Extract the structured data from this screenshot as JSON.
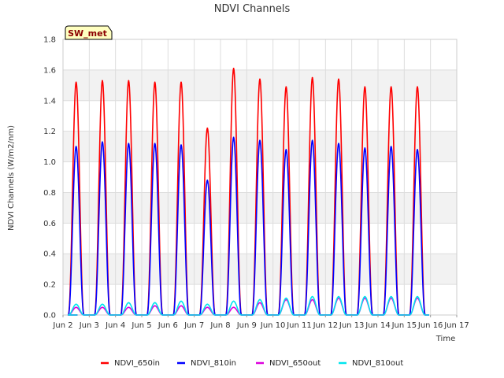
{
  "chart_data": {
    "type": "line",
    "title": "NDVI Channels",
    "xlabel": "Time",
    "ylabel": "NDVI Channels (W/m2/nm)",
    "badge": "SW_met",
    "xlim": [
      2,
      17
    ],
    "ylim": [
      0,
      1.8
    ],
    "y_ticks": [
      0.0,
      0.2,
      0.4,
      0.6,
      0.8,
      1.0,
      1.2,
      1.4,
      1.6,
      1.8
    ],
    "y_tick_labels": [
      "0.0",
      "0.2",
      "0.4",
      "0.6",
      "0.8",
      "1.0",
      "1.2",
      "1.4",
      "1.6",
      "1.8"
    ],
    "x_ticks": [
      2,
      3,
      4,
      5,
      6,
      7,
      8,
      9,
      10,
      11,
      12,
      13,
      14,
      15,
      16,
      17
    ],
    "x_tick_labels": [
      "Jun 2",
      "Jun 3",
      "Jun 4",
      "Jun 5",
      "Jun 6",
      "Jun 7",
      "Jun 8",
      "Jun 9",
      "Jun 10",
      "Jun 11",
      "Jun 12",
      "Jun 13",
      "Jun 14",
      "Jun 15",
      "Jun 16",
      "Jun 17"
    ],
    "grid": true,
    "legend_position": "bottom",
    "day_centers": [
      2.5,
      3.5,
      4.5,
      5.5,
      6.5,
      7.5,
      8.5,
      9.5,
      10.5,
      11.5,
      12.5,
      13.5,
      14.5,
      15.5
    ],
    "day_half_width": 0.3,
    "series": [
      {
        "name": "NDVI_650in",
        "color": "#ff0000",
        "daily_peaks": [
          1.52,
          1.53,
          1.53,
          1.52,
          1.52,
          1.22,
          1.61,
          1.54,
          1.49,
          1.55,
          1.54,
          1.49,
          1.49,
          1.49
        ]
      },
      {
        "name": "NDVI_810in",
        "color": "#0000ff",
        "daily_peaks": [
          1.1,
          1.13,
          1.12,
          1.12,
          1.11,
          0.88,
          1.16,
          1.14,
          1.08,
          1.14,
          1.12,
          1.09,
          1.1,
          1.08
        ]
      },
      {
        "name": "NDVI_650out",
        "color": "#dd00dd",
        "daily_peaks": [
          0.05,
          0.05,
          0.05,
          0.06,
          0.06,
          0.05,
          0.05,
          0.08,
          0.1,
          0.1,
          0.11,
          0.11,
          0.11,
          0.11
        ]
      },
      {
        "name": "NDVI_810out",
        "color": "#00e5ee",
        "daily_peaks": [
          0.07,
          0.07,
          0.08,
          0.08,
          0.09,
          0.07,
          0.09,
          0.1,
          0.11,
          0.12,
          0.12,
          0.12,
          0.12,
          0.12
        ]
      }
    ]
  }
}
